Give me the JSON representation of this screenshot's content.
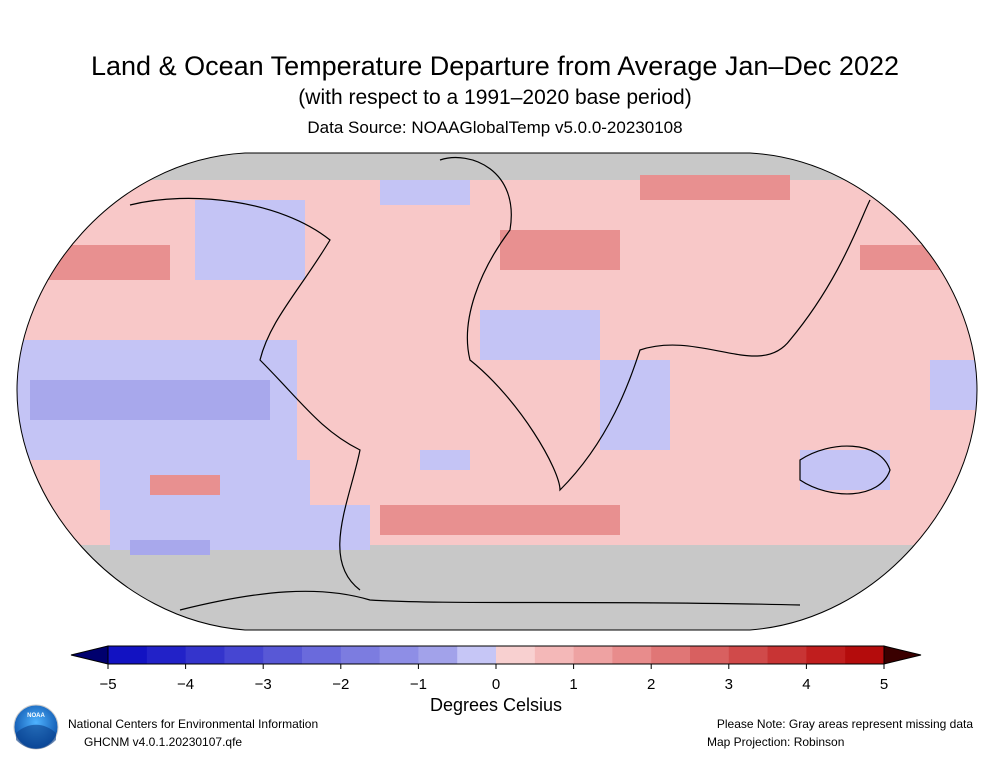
{
  "header": {
    "title": "Land & Ocean Temperature Departure from Average Jan–Dec 2022",
    "subtitle": "(with respect to a 1991–2020 base period)",
    "source": "Data Source: NOAAGlobalTemp v5.0.0-20230108"
  },
  "colorbar": {
    "label": "Degrees Celsius",
    "lim": [
      -5,
      5
    ],
    "ticks": [
      {
        "value": -5,
        "label": "−5"
      },
      {
        "value": -4,
        "label": "−4"
      },
      {
        "value": -3,
        "label": "−3"
      },
      {
        "value": -2,
        "label": "−2"
      },
      {
        "value": -1,
        "label": "−1"
      },
      0,
      1,
      2,
      3,
      4,
      5
    ],
    "colors": [
      "#1212c2",
      "#2222c8",
      "#3434cc",
      "#4646d2",
      "#5858d6",
      "#6a6adc",
      "#7c7ce0",
      "#8e8ee6",
      "#a2a2ea",
      "#c6c6f6",
      "#f8d0d0",
      "#f4b8b8",
      "#eea2a2",
      "#e88c8c",
      "#e07676",
      "#d86060",
      "#d04a4a",
      "#c83434",
      "#c01e1e",
      "#b40c0c"
    ],
    "under_color": "#00006e",
    "over_color": "#3a0000"
  },
  "logo": {
    "text": "NOAA"
  },
  "footer": {
    "org": "National Centers for Environmental Information",
    "version": "GHCNM v4.0.1.20230107.qfe",
    "note": "Please Note: Gray areas represent missing data",
    "projection": "Map Projection: Robinson"
  }
}
